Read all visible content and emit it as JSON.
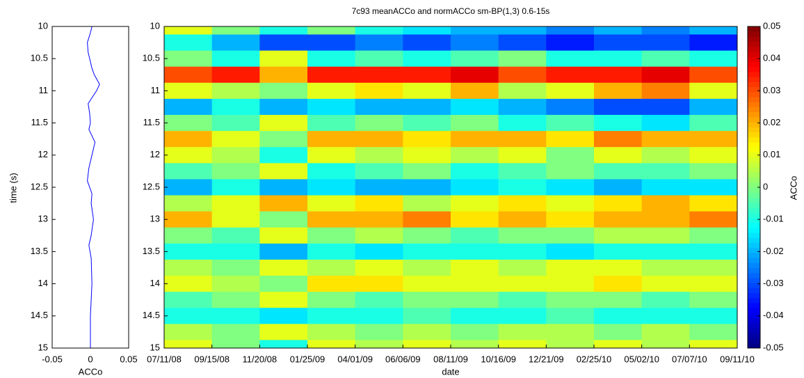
{
  "chart_data": [
    {
      "type": "line",
      "orientation": "vertical",
      "xlabel": "ACCo",
      "ylabel": "time (s)",
      "xlim": [
        -0.05,
        0.05
      ],
      "xticks": [
        -0.05,
        0,
        0.05
      ],
      "ylim": [
        10,
        15
      ],
      "yticks": [
        10,
        10.5,
        11,
        11.5,
        12,
        12.5,
        13,
        13.5,
        14,
        14.5,
        15
      ],
      "yreverse": true,
      "y": [
        10,
        10.1,
        10.25,
        10.4,
        10.5,
        10.65,
        10.75,
        10.9,
        11,
        11.2,
        11.35,
        11.5,
        11.6,
        11.8,
        12,
        12.2,
        12.4,
        12.6,
        12.75,
        13,
        13.25,
        13.4,
        13.6,
        14,
        14.5,
        15
      ],
      "series": [
        {
          "color": "#0000ff",
          "values": [
            0.002,
            0,
            -0.004,
            -0.003,
            -0.001,
            0.002,
            0.005,
            0.012,
            0.008,
            -0.003,
            -0.001,
            0,
            -0.002,
            0.006,
            0.002,
            -0.002,
            -0.004,
            0.002,
            0.001,
            0.004,
            0.001,
            -0.002,
            0.001,
            0.002,
            0,
            0
          ]
        }
      ]
    },
    {
      "type": "heatmap",
      "title": "7c93 meanACCo and normACCo sm-BP(1,3) 0.6-15s",
      "xlabel": "date",
      "xticks": [
        "07/11/08",
        "09/15/08",
        "11/20/08",
        "01/25/09",
        "04/01/09",
        "06/06/09",
        "08/11/09",
        "10/16/09",
        "12/21/09",
        "02/25/10",
        "05/02/10",
        "07/07/10",
        "09/11/10"
      ],
      "ylim": [
        10,
        15
      ],
      "yticks": [
        10,
        10.5,
        11,
        11.5,
        12,
        12.5,
        13,
        13.5,
        14,
        14.5,
        15
      ],
      "yreverse": true,
      "y": [
        10,
        10.25,
        10.5,
        10.75,
        11,
        11.25,
        11.5,
        11.75,
        12,
        12.25,
        12.5,
        12.75,
        13,
        13.25,
        13.5,
        13.75,
        14,
        14.25,
        14.5,
        14.75,
        15
      ],
      "colormap": "jet",
      "clim": [
        -0.05,
        0.05
      ],
      "clabel": "ACCo",
      "cticks": [
        -0.05,
        -0.04,
        -0.03,
        -0.02,
        -0.01,
        0,
        0.01,
        0.02,
        0.03,
        0.04,
        0.05
      ],
      "values": [
        [
          0.01,
          0,
          -0.01,
          0,
          -0.01,
          -0.015,
          -0.02,
          -0.02,
          -0.025,
          -0.02,
          -0.025,
          -0.02
        ],
        [
          -0.01,
          -0.02,
          -0.03,
          -0.03,
          -0.025,
          -0.03,
          -0.025,
          -0.03,
          -0.035,
          -0.03,
          -0.03,
          -0.035
        ],
        [
          0,
          -0.01,
          0.01,
          -0.01,
          -0.005,
          -0.01,
          -0.005,
          0,
          -0.01,
          -0.01,
          -0.005,
          -0.01
        ],
        [
          0.03,
          0.035,
          0.02,
          0.035,
          0.035,
          0.035,
          0.04,
          0.03,
          0.035,
          0.035,
          0.04,
          0.03
        ],
        [
          0.01,
          0.005,
          0,
          0.01,
          0.015,
          0.01,
          0.02,
          0.005,
          0.01,
          0.02,
          0.025,
          0.01
        ],
        [
          -0.02,
          -0.01,
          -0.02,
          -0.015,
          -0.02,
          -0.02,
          -0.015,
          -0.02,
          -0.025,
          -0.03,
          -0.03,
          -0.02
        ],
        [
          0,
          -0.005,
          0.01,
          -0.005,
          0,
          -0.005,
          0,
          -0.01,
          -0.005,
          -0.01,
          -0.015,
          -0.005
        ],
        [
          0.02,
          0.01,
          0,
          0.02,
          0.02,
          0.015,
          0.02,
          0.02,
          0.015,
          0.025,
          0.02,
          0.02
        ],
        [
          0.01,
          0.005,
          -0.01,
          0.01,
          0.005,
          0.01,
          0.005,
          0.01,
          0,
          0.01,
          0.005,
          0.01
        ],
        [
          -0.005,
          0,
          0.01,
          -0.01,
          -0.005,
          0,
          -0.01,
          -0.005,
          0,
          -0.005,
          -0.005,
          0
        ],
        [
          -0.02,
          -0.01,
          -0.02,
          -0.015,
          -0.02,
          -0.02,
          -0.015,
          -0.01,
          -0.015,
          -0.02,
          -0.015,
          -0.015
        ],
        [
          0.005,
          0.01,
          0.02,
          0.01,
          0.015,
          0.005,
          0.01,
          0.015,
          0.01,
          0.015,
          0.02,
          0.015
        ],
        [
          0.02,
          0.01,
          0,
          0.02,
          0.02,
          0.025,
          0.015,
          0.02,
          0.015,
          0.02,
          0.02,
          0.025
        ],
        [
          0,
          -0.005,
          0.01,
          0,
          0.005,
          0,
          -0.005,
          0,
          0,
          0.005,
          0.005,
          0
        ],
        [
          -0.01,
          -0.01,
          -0.02,
          -0.01,
          -0.015,
          -0.01,
          -0.01,
          -0.01,
          -0.015,
          -0.01,
          -0.01,
          -0.01
        ],
        [
          0.005,
          0,
          0.01,
          0.005,
          0.01,
          0.005,
          0.01,
          0.005,
          0.01,
          0.01,
          0.005,
          0.005
        ],
        [
          0.01,
          0.005,
          0,
          0.015,
          0.015,
          0.01,
          0.01,
          0.01,
          0.01,
          0.015,
          0.01,
          0.01
        ],
        [
          -0.005,
          0,
          0.01,
          0,
          -0.005,
          0,
          0,
          -0.005,
          0,
          0,
          -0.005,
          0
        ],
        [
          -0.01,
          -0.01,
          -0.015,
          -0.01,
          -0.01,
          -0.005,
          -0.01,
          -0.01,
          -0.005,
          -0.01,
          -0.01,
          -0.01
        ],
        [
          0.005,
          0,
          0.01,
          0.005,
          0,
          0.005,
          0,
          0.005,
          0.005,
          0,
          0.005,
          0
        ],
        [
          0.01,
          0,
          -0.01,
          0.01,
          0.005,
          0.01,
          0.005,
          0.01,
          0.005,
          0.01,
          0.005,
          0.01
        ]
      ]
    }
  ]
}
